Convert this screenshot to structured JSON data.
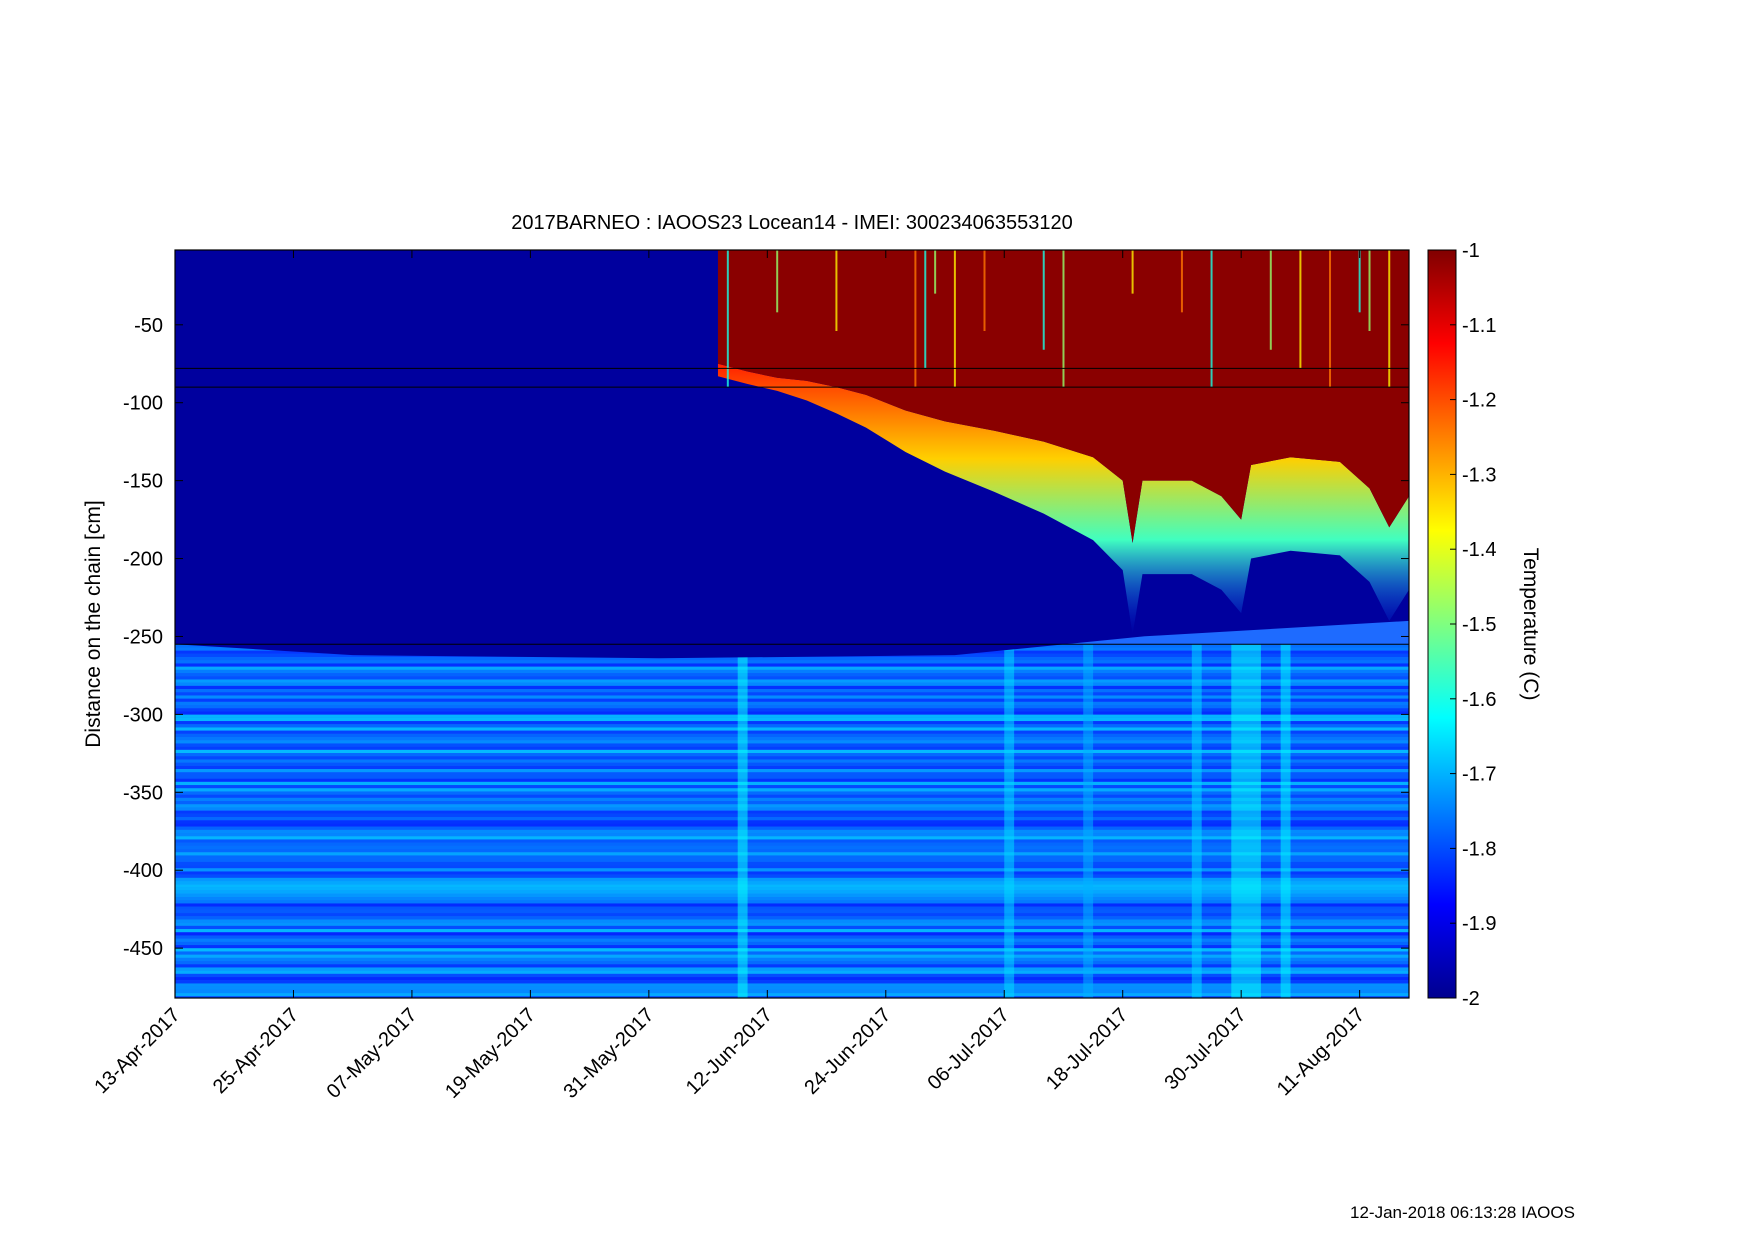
{
  "chart_data": {
    "type": "heatmap",
    "title": "2017BARNEO : IAOOS23  Locean14 - IMEI: 300234063553120",
    "xlabel": "",
    "ylabel": "Distance on the chain [cm]",
    "x_type": "date",
    "xlim": [
      "2017-04-13",
      "2017-08-16"
    ],
    "ylim": [
      -482,
      -2
    ],
    "x_ticks": [
      "13-Apr-2017",
      "25-Apr-2017",
      "07-May-2017",
      "19-May-2017",
      "31-May-2017",
      "12-Jun-2017",
      "24-Jun-2017",
      "06-Jul-2017",
      "18-Jul-2017",
      "30-Jul-2017",
      "11-Aug-2017"
    ],
    "x_tick_dates": [
      "2017-04-13",
      "2017-04-25",
      "2017-05-07",
      "2017-05-19",
      "2017-05-31",
      "2017-06-12",
      "2017-06-24",
      "2017-07-06",
      "2017-07-18",
      "2017-07-30",
      "2017-08-11"
    ],
    "y_ticks": [
      -50,
      -100,
      -150,
      -200,
      -250,
      -300,
      -350,
      -400,
      -450
    ],
    "colorbar": {
      "label": "Temperature (C)",
      "colormap": "jet",
      "clim": [
        -2,
        -1
      ],
      "ticks": [
        -1,
        -1.1,
        -1.2,
        -1.3,
        -1.4,
        -1.5,
        -1.6,
        -1.7,
        -1.8,
        -1.9,
        -2
      ]
    },
    "horizontal_lines_y": [
      -78,
      -90,
      -255
    ],
    "ice_bottom_profile": [
      {
        "date": "2017-04-13",
        "y": -255
      },
      {
        "date": "2017-05-01",
        "y": -262
      },
      {
        "date": "2017-06-01",
        "y": -264
      },
      {
        "date": "2017-07-01",
        "y": -262
      },
      {
        "date": "2017-07-20",
        "y": -250
      },
      {
        "date": "2017-08-16",
        "y": -240
      }
    ],
    "warm_top_boundary_profile": [
      {
        "date": "2017-06-07",
        "y": -75
      },
      {
        "date": "2017-06-10",
        "y": -80
      },
      {
        "date": "2017-06-13",
        "y": -84
      },
      {
        "date": "2017-06-16",
        "y": -86
      },
      {
        "date": "2017-06-19",
        "y": -90
      },
      {
        "date": "2017-06-22",
        "y": -95
      },
      {
        "date": "2017-06-26",
        "y": -105
      },
      {
        "date": "2017-06-30",
        "y": -112
      },
      {
        "date": "2017-07-05",
        "y": -118
      },
      {
        "date": "2017-07-10",
        "y": -125
      },
      {
        "date": "2017-07-15",
        "y": -135
      },
      {
        "date": "2017-07-18",
        "y": -150
      },
      {
        "date": "2017-07-19",
        "y": -190
      },
      {
        "date": "2017-07-20",
        "y": -150
      },
      {
        "date": "2017-07-25",
        "y": -150
      },
      {
        "date": "2017-07-28",
        "y": -160
      },
      {
        "date": "2017-07-30",
        "y": -175
      },
      {
        "date": "2017-07-31",
        "y": -140
      },
      {
        "date": "2017-08-04",
        "y": -135
      },
      {
        "date": "2017-08-09",
        "y": -138
      },
      {
        "date": "2017-08-12",
        "y": -155
      },
      {
        "date": "2017-08-14",
        "y": -180
      },
      {
        "date": "2017-08-16",
        "y": -160
      }
    ],
    "warm_layer_temperature": -1.0,
    "ice_core_temperature": -1.97,
    "ocean_temperature_range": [
      -1.85,
      -1.62
    ]
  },
  "footer": {
    "timestamp": "12-Jan-2018 06:13:28 IAOOS"
  }
}
